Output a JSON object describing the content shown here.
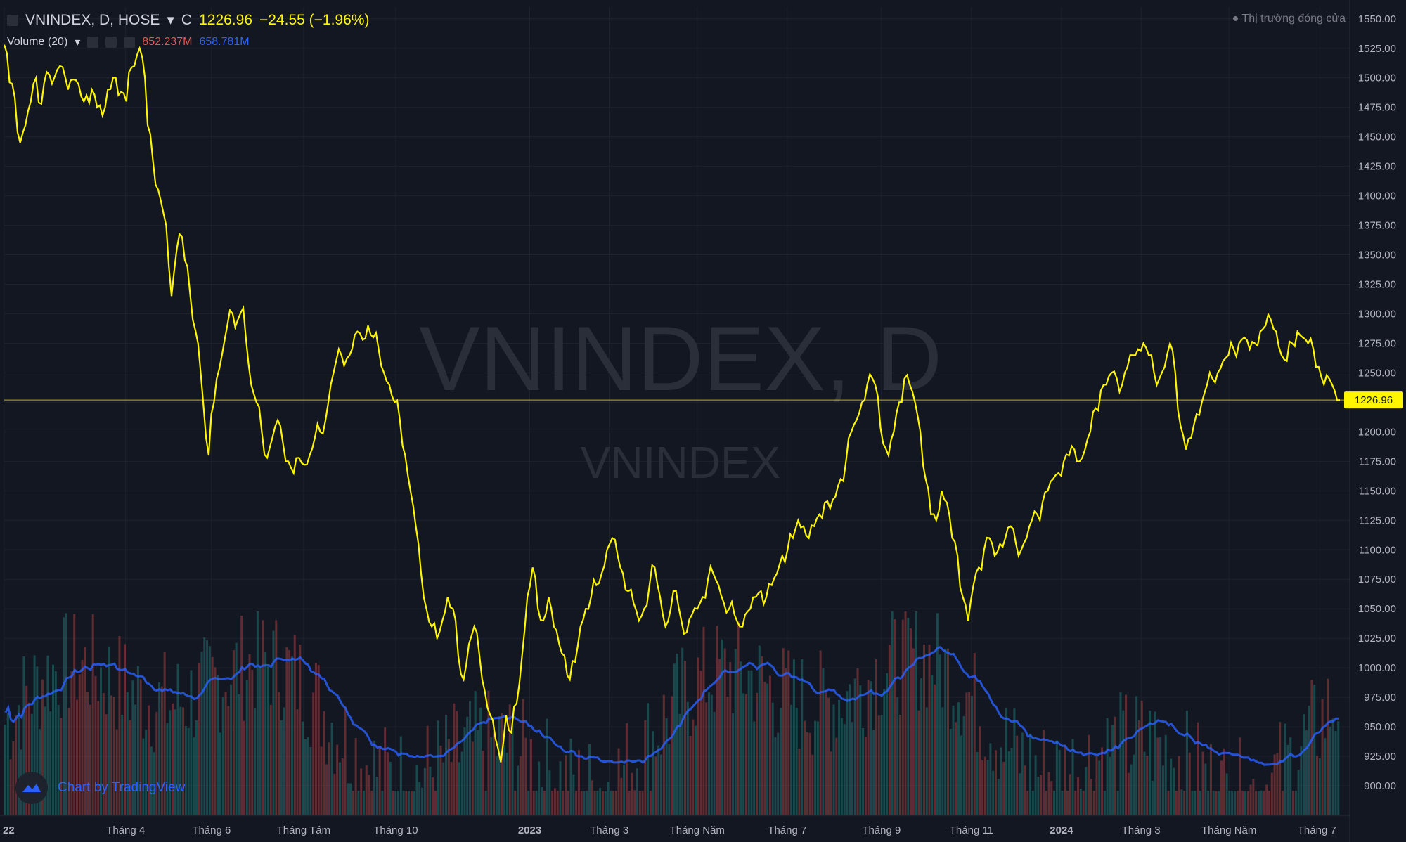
{
  "header": {
    "symbol": "VNINDEX, D, HOSE",
    "close_prefix": "C",
    "close_value": "1226.96",
    "change": "−24.55 (−1.96%)"
  },
  "volume": {
    "label": "Volume (20)",
    "value_red": "852.237M",
    "value_blue": "658.781M"
  },
  "status": "● Thị trường đóng cửa",
  "watermark": {
    "main": "VNINDEX, D",
    "sub": "VNINDEX"
  },
  "brand": "Chart by TradingView",
  "colors": {
    "background": "#131722",
    "price_line": "#fff600",
    "volume_up": "#26a69a",
    "volume_down": "#ef5350",
    "volume_ma": "#2962ff",
    "grid": "#1e222d"
  },
  "chart_data": {
    "type": "line",
    "title": "VNINDEX, D, HOSE",
    "last_price": 1226.96,
    "last_price_label": "1226.96",
    "ylim": [
      875,
      1560
    ],
    "y_ticks": [
      "1550.00",
      "1525.00",
      "1500.00",
      "1475.00",
      "1450.00",
      "1425.00",
      "1400.00",
      "1375.00",
      "1350.00",
      "1325.00",
      "1300.00",
      "1275.00",
      "1250.00",
      "1225.00",
      "1200.00",
      "1175.00",
      "1150.00",
      "1125.00",
      "1100.00",
      "1075.00",
      "1050.00",
      "1025.00",
      "1000.00",
      "975.00",
      "950.00",
      "925.00",
      "900.00"
    ],
    "x_ticks": [
      {
        "label": "22",
        "t": 0.0
      },
      {
        "label": "Tháng 4",
        "t": 58
      },
      {
        "label": "Tháng 6",
        "t": 99
      },
      {
        "label": "Tháng Tám",
        "t": 143
      },
      {
        "label": "Tháng 10",
        "t": 187
      },
      {
        "label": "2023",
        "t": 251
      },
      {
        "label": "Tháng 3",
        "t": 289
      },
      {
        "label": "Tháng Năm",
        "t": 331
      },
      {
        "label": "Tháng 7",
        "t": 374
      },
      {
        "label": "Tháng 9",
        "t": 419
      },
      {
        "label": "Tháng 11",
        "t": 462
      },
      {
        "label": "2024",
        "t": 505
      },
      {
        "label": "Tháng 3",
        "t": 543
      },
      {
        "label": "Tháng Năm",
        "t": 585
      },
      {
        "label": "Tháng 7",
        "t": 627
      }
    ],
    "series": [
      {
        "values": [
          [
            0,
            1528
          ],
          [
            3,
            1495
          ],
          [
            6,
            1445
          ],
          [
            8,
            1460
          ],
          [
            10,
            1480
          ],
          [
            12,
            1500
          ],
          [
            14,
            1478
          ],
          [
            16,
            1505
          ],
          [
            18,
            1495
          ],
          [
            21,
            1510
          ],
          [
            24,
            1490
          ],
          [
            27,
            1498
          ],
          [
            30,
            1480
          ],
          [
            33,
            1490
          ],
          [
            35,
            1475
          ],
          [
            37,
            1468
          ],
          [
            39,
            1490
          ],
          [
            42,
            1500
          ],
          [
            44,
            1488
          ],
          [
            46,
            1480
          ],
          [
            47,
            1505
          ],
          [
            49,
            1510
          ],
          [
            51,
            1525
          ],
          [
            53,
            1500
          ],
          [
            54,
            1460
          ],
          [
            56,
            1430
          ],
          [
            58,
            1405
          ],
          [
            60,
            1385
          ],
          [
            61,
            1375
          ],
          [
            63,
            1315
          ],
          [
            65,
            1355
          ],
          [
            67,
            1365
          ],
          [
            69,
            1340
          ],
          [
            71,
            1295
          ],
          [
            73,
            1275
          ],
          [
            74,
            1250
          ],
          [
            76,
            1195
          ],
          [
            77,
            1180
          ],
          [
            78,
            1215
          ],
          [
            79,
            1225
          ],
          [
            80,
            1245
          ],
          [
            82,
            1265
          ],
          [
            84,
            1290
          ],
          [
            86,
            1300
          ],
          [
            88,
            1295
          ],
          [
            90,
            1305
          ],
          [
            91,
            1280
          ],
          [
            93,
            1240
          ],
          [
            95,
            1225
          ],
          [
            97,
            1200
          ],
          [
            99,
            1178
          ],
          [
            101,
            1195
          ],
          [
            103,
            1210
          ],
          [
            105,
            1190
          ],
          [
            107,
            1175
          ],
          [
            109,
            1165
          ],
          [
            111,
            1178
          ],
          [
            113,
            1172
          ],
          [
            115,
            1180
          ],
          [
            117,
            1195
          ],
          [
            119,
            1200
          ],
          [
            121,
            1210
          ],
          [
            123,
            1240
          ],
          [
            125,
            1260
          ],
          [
            127,
            1265
          ],
          [
            129,
            1262
          ],
          [
            131,
            1270
          ],
          [
            133,
            1285
          ],
          [
            135,
            1278
          ],
          [
            137,
            1290
          ],
          [
            139,
            1280
          ],
          [
            141,
            1270
          ],
          [
            143,
            1250
          ],
          [
            145,
            1240
          ],
          [
            147,
            1225
          ],
          [
            149,
            1210
          ],
          [
            151,
            1180
          ],
          [
            153,
            1150
          ],
          [
            155,
            1120
          ],
          [
            157,
            1080
          ],
          [
            159,
            1050
          ],
          [
            161,
            1035
          ],
          [
            163,
            1025
          ],
          [
            165,
            1040
          ],
          [
            167,
            1060
          ],
          [
            169,
            1050
          ],
          [
            171,
            1010
          ],
          [
            173,
            990
          ],
          [
            175,
            1020
          ],
          [
            177,
            1035
          ],
          [
            179,
            1010
          ],
          [
            181,
            980
          ],
          [
            183,
            960
          ],
          [
            185,
            940
          ],
          [
            187,
            920
          ],
          [
            189,
            960
          ],
          [
            191,
            945
          ],
          [
            193,
            970
          ],
          [
            195,
            1010
          ],
          [
            197,
            1060
          ],
          [
            199,
            1085
          ],
          [
            201,
            1050
          ],
          [
            203,
            1040
          ],
          [
            205,
            1060
          ],
          [
            207,
            1035
          ],
          [
            209,
            1020
          ],
          [
            211,
            1010
          ],
          [
            213,
            990
          ],
          [
            215,
            1005
          ],
          [
            217,
            1035
          ],
          [
            219,
            1050
          ],
          [
            221,
            1060
          ],
          [
            223,
            1070
          ],
          [
            225,
            1080
          ],
          [
            227,
            1100
          ],
          [
            229,
            1110
          ],
          [
            231,
            1095
          ],
          [
            233,
            1080
          ],
          [
            235,
            1065
          ],
          [
            237,
            1055
          ],
          [
            239,
            1040
          ],
          [
            241,
            1050
          ],
          [
            243,
            1070
          ],
          [
            245,
            1085
          ],
          [
            247,
            1060
          ],
          [
            249,
            1035
          ],
          [
            251,
            1050
          ],
          [
            253,
            1065
          ],
          [
            255,
            1040
          ],
          [
            257,
            1030
          ],
          [
            259,
            1045
          ],
          [
            261,
            1050
          ],
          [
            263,
            1060
          ],
          [
            265,
            1075
          ],
          [
            267,
            1080
          ],
          [
            269,
            1070
          ],
          [
            271,
            1055
          ],
          [
            273,
            1050
          ],
          [
            275,
            1045
          ],
          [
            277,
            1035
          ],
          [
            279,
            1045
          ],
          [
            281,
            1050
          ],
          [
            283,
            1060
          ],
          [
            285,
            1065
          ],
          [
            287,
            1060
          ],
          [
            289,
            1070
          ],
          [
            291,
            1080
          ],
          [
            293,
            1095
          ],
          [
            295,
            1100
          ],
          [
            297,
            1110
          ],
          [
            299,
            1125
          ],
          [
            301,
            1120
          ],
          [
            303,
            1110
          ],
          [
            305,
            1120
          ],
          [
            307,
            1130
          ],
          [
            309,
            1140
          ],
          [
            311,
            1135
          ],
          [
            313,
            1145
          ],
          [
            315,
            1160
          ],
          [
            317,
            1175
          ],
          [
            319,
            1200
          ],
          [
            321,
            1210
          ],
          [
            323,
            1225
          ],
          [
            325,
            1240
          ],
          [
            327,
            1245
          ],
          [
            329,
            1230
          ],
          [
            331,
            1190
          ],
          [
            333,
            1180
          ],
          [
            335,
            1200
          ],
          [
            337,
            1225
          ],
          [
            339,
            1245
          ],
          [
            341,
            1240
          ],
          [
            343,
            1225
          ],
          [
            345,
            1200
          ],
          [
            347,
            1160
          ],
          [
            349,
            1130
          ],
          [
            351,
            1125
          ],
          [
            353,
            1150
          ],
          [
            355,
            1140
          ],
          [
            357,
            1110
          ],
          [
            359,
            1095
          ],
          [
            361,
            1060
          ],
          [
            363,
            1040
          ],
          [
            365,
            1070
          ],
          [
            367,
            1085
          ],
          [
            369,
            1100
          ],
          [
            371,
            1110
          ],
          [
            373,
            1095
          ],
          [
            375,
            1105
          ],
          [
            377,
            1110
          ],
          [
            379,
            1120
          ],
          [
            381,
            1105
          ],
          [
            383,
            1100
          ],
          [
            385,
            1110
          ],
          [
            387,
            1125
          ],
          [
            389,
            1130
          ],
          [
            391,
            1140
          ],
          [
            393,
            1150
          ],
          [
            395,
            1160
          ],
          [
            397,
            1165
          ],
          [
            399,
            1175
          ],
          [
            401,
            1180
          ],
          [
            403,
            1185
          ],
          [
            405,
            1175
          ],
          [
            407,
            1185
          ],
          [
            409,
            1200
          ],
          [
            411,
            1220
          ],
          [
            413,
            1235
          ],
          [
            415,
            1240
          ],
          [
            417,
            1250
          ],
          [
            419,
            1245
          ],
          [
            421,
            1240
          ],
          [
            423,
            1255
          ],
          [
            425,
            1265
          ],
          [
            427,
            1270
          ],
          [
            429,
            1275
          ],
          [
            431,
            1265
          ],
          [
            433,
            1250
          ],
          [
            435,
            1245
          ],
          [
            437,
            1255
          ],
          [
            439,
            1275
          ],
          [
            441,
            1250
          ],
          [
            443,
            1205
          ],
          [
            445,
            1185
          ],
          [
            447,
            1195
          ],
          [
            449,
            1215
          ],
          [
            451,
            1225
          ],
          [
            453,
            1240
          ],
          [
            455,
            1245
          ],
          [
            457,
            1250
          ],
          [
            459,
            1260
          ],
          [
            461,
            1265
          ],
          [
            463,
            1270
          ],
          [
            465,
            1275
          ],
          [
            467,
            1280
          ],
          [
            469,
            1270
          ],
          [
            471,
            1275
          ],
          [
            473,
            1285
          ],
          [
            475,
            1290
          ],
          [
            477,
            1295
          ],
          [
            479,
            1285
          ],
          [
            481,
            1265
          ],
          [
            483,
            1260
          ],
          [
            485,
            1275
          ],
          [
            487,
            1285
          ],
          [
            489,
            1280
          ],
          [
            491,
            1275
          ],
          [
            493,
            1270
          ],
          [
            495,
            1255
          ],
          [
            497,
            1240
          ],
          [
            499,
            1245
          ],
          [
            501,
            1235
          ],
          [
            503,
            1226.96
          ]
        ],
        "raw_scale": "bars"
      }
    ],
    "volume_series": {
      "label": "Volume (20)",
      "ylim": [
        0,
        1
      ]
    }
  }
}
